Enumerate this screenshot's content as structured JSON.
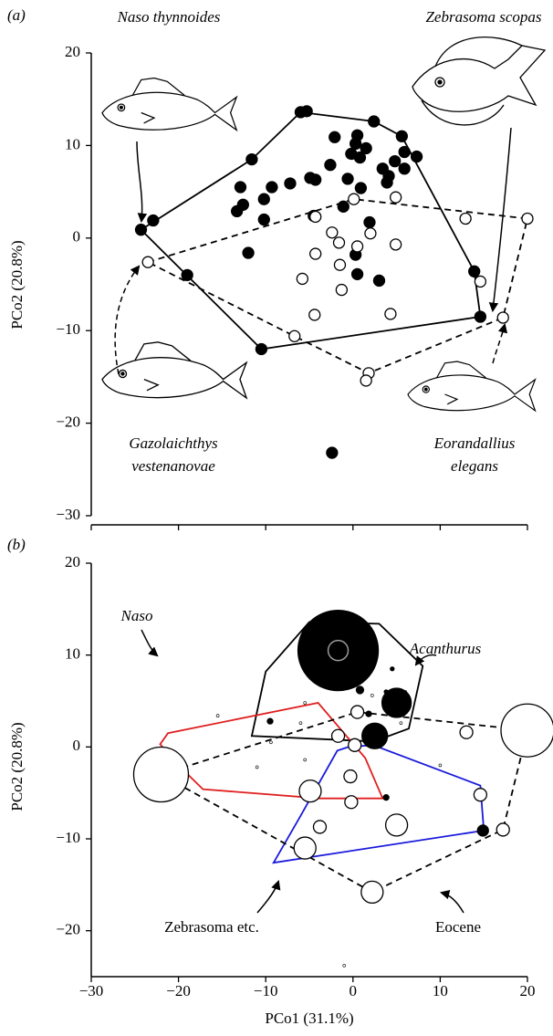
{
  "chart_data": [
    {
      "type": "scatter",
      "panel_label": "(a)",
      "y_label": "PCo2 (20.8%)",
      "annotations": [
        [
          "Naso thynnoides"
        ],
        [
          "Zebrasoma scopas"
        ],
        [
          "Gazolaichthys",
          "vestenanovae"
        ],
        [
          "Eorandallius",
          "elegans"
        ]
      ],
      "xlim": [
        -30,
        20
      ],
      "xticks": [
        -30,
        -20,
        -10,
        0,
        10,
        20
      ],
      "xtick_labels": false,
      "ylim": [
        -30,
        20
      ],
      "yticks": [
        20,
        10,
        0,
        {
          "value": -10,
          "label": "−10"
        },
        {
          "value": -20,
          "label": "−20"
        },
        {
          "value": -30,
          "label": "−30"
        }
      ],
      "series": [
        {
          "color": "#000000",
          "x": [
            -24.3,
            -22.9,
            -19.0,
            -11.6,
            -10.5,
            -6.0,
            -5.3,
            -2.1,
            -4.9,
            0.5,
            0.3,
            2.4,
            5.6,
            -0.2,
            0.8,
            1.5,
            -2.6,
            -4.3,
            -7.2,
            -9.3,
            -12.9,
            -13.3,
            -12.6,
            -10.2,
            -12.0,
            -0.6,
            0.9,
            3.4,
            4.8,
            3.9,
            4.1,
            5.9,
            7.3,
            5.9,
            1.9,
            0.3,
            0.5,
            3.0,
            13.9,
            14.6,
            -2.4,
            -1.1,
            -4.5,
            -10.2
          ],
          "values": [
            0.9,
            1.9,
            -4.0,
            8.5,
            -12.0,
            13.6,
            13.7,
            10.9,
            6.5,
            11.1,
            10.2,
            12.6,
            11.0,
            9.1,
            8.7,
            9.7,
            7.9,
            6.3,
            5.9,
            5.5,
            5.5,
            2.9,
            3.6,
            2.0,
            -1.6,
            6.4,
            5.4,
            7.5,
            8.3,
            6.0,
            6.7,
            9.3,
            8.8,
            7.5,
            1.7,
            -1.8,
            -3.9,
            -4.6,
            -3.6,
            -8.5,
            -23.2,
            3.4,
            2.4,
            4.2
          ]
        },
        {
          "color": "#ffffff",
          "x": [
            -23.5,
            0.1,
            4.9,
            -2.4,
            -4.3,
            -1.6,
            2.0,
            0.5,
            -1.5,
            -4.3,
            -1.3,
            -5.8,
            -4.4,
            -6.7,
            4.3,
            4.9,
            12.9,
            20.0,
            14.6,
            17.2,
            1.8,
            1.5
          ],
          "values": [
            -2.6,
            4.2,
            4.4,
            0.6,
            2.3,
            -0.5,
            0.5,
            -0.9,
            -2.9,
            -1.7,
            -5.6,
            -4.4,
            -8.3,
            -10.6,
            -8.2,
            -0.7,
            2.1,
            2.1,
            -4.7,
            -8.6,
            -14.6,
            -15.4
          ]
        }
      ],
      "polygons": [
        {
          "color": "#000000",
          "dashed": false,
          "x": [
            -24.3,
            -11.6,
            -6.0,
            2.4,
            5.6,
            13.9,
            14.6,
            -10.5
          ],
          "y": [
            0.9,
            8.5,
            13.6,
            12.6,
            11.0,
            -3.6,
            -8.5,
            -12.0
          ]
        },
        {
          "color": "#000000",
          "dashed": true,
          "x": [
            -23.5,
            0.1,
            20.0,
            17.2,
            1.8,
            -6.7
          ],
          "y": [
            -2.6,
            4.2,
            2.1,
            -8.6,
            -14.6,
            -10.6
          ]
        }
      ]
    },
    {
      "type": "scatter",
      "panel_label": "(b)",
      "y_label": "PCo2 (20.8%)",
      "x_label": "PCo1 (31.1%)",
      "xlim": [
        -30,
        20
      ],
      "xticks": [
        {
          "value": -30,
          "label": "−30"
        },
        {
          "value": -20,
          "label": "−20"
        },
        {
          "value": -10,
          "label": "−10"
        },
        0,
        10,
        20
      ],
      "xtick_labels": true,
      "ylim": [
        -25,
        20
      ],
      "yticks": [
        20,
        10,
        0,
        {
          "value": -10,
          "label": "−10"
        },
        {
          "value": -20,
          "label": "−20"
        }
      ],
      "series": [
        {
          "color": "#ffffff",
          "x": [
            -22,
            20,
            -4.9,
            -5.5,
            5,
            2.2,
            0.5,
            -1.7,
            0.2,
            -0.3,
            -0.2,
            -3.8,
            13,
            14.6,
            17.2,
            2.8,
            -1,
            -6,
            -9.4,
            -15.5,
            -5.5,
            2.2,
            6,
            5.5,
            -11,
            10,
            -5.5
          ],
          "values": [
            -3,
            1.8,
            -4.8,
            -11,
            -8.5,
            -15.8,
            3.8,
            1.2,
            0.2,
            -3.2,
            -6,
            -8.7,
            1.6,
            -5.2,
            -9,
            1.2,
            -23.8,
            2.6,
            0.5,
            3.4,
            4.8,
            5.6,
            6,
            2.6,
            -2.2,
            -2,
            -1.4
          ],
          "sizes": [
            30,
            29,
            12,
            12,
            12,
            12,
            7,
            7,
            7,
            7,
            7,
            7,
            7,
            7,
            7,
            7,
            1.5,
            1.5,
            1.5,
            1.5,
            1.5,
            1.5,
            1.5,
            1.5,
            1.5,
            1.5,
            1.5
          ]
        },
        {
          "color": "#000000",
          "x": [
            -1.7,
            5.0,
            2.5,
            0.8,
            1.8,
            -9.5,
            14.9,
            3.8,
            3.8,
            4.5
          ],
          "values": [
            10.5,
            4.8,
            1.2,
            6.2,
            3.6,
            2.8,
            -9.1,
            -5.5,
            6,
            8.5
          ],
          "sizes": [
            44,
            16,
            14,
            4,
            3,
            3,
            6,
            3,
            2,
            2
          ]
        }
      ],
      "polygons": [
        {
          "name": "Acanthurus",
          "italic": true,
          "color": "#000000",
          "dashed": false,
          "x": [
            -11.6,
            -10,
            -5,
            3,
            8,
            6.4,
            2.4
          ],
          "y": [
            1.2,
            8.2,
            13.6,
            13.4,
            8.8,
            2.0,
            0.6
          ]
        },
        {
          "name": "Naso",
          "italic": true,
          "color": "#e02020",
          "dashed": false,
          "x": [
            -22.1,
            -21.2,
            -4,
            1.4,
            3.4,
            -3.8,
            -17.2,
            -20
          ],
          "y": [
            0.3,
            1.5,
            4.8,
            -1.2,
            -5.6,
            -5.6,
            -4.6,
            -2
          ]
        },
        {
          "name": "Zebrasoma etc.",
          "italic": false,
          "color": "#1a1adc",
          "dashed": false,
          "x": [
            -9.1,
            -6,
            -1.8,
            -0.5,
            2.3,
            14.6,
            15
          ],
          "y": [
            -12.6,
            -7.5,
            -0.4,
            0,
            0.2,
            -4.2,
            -9.1
          ]
        },
        {
          "name": "Eocene",
          "italic": false,
          "color": "#000000",
          "dashed": true,
          "x": [
            -22,
            0.5,
            20,
            17.2,
            2.2
          ],
          "y": [
            -3,
            3.8,
            1.8,
            -9,
            -15.8
          ]
        }
      ]
    }
  ]
}
